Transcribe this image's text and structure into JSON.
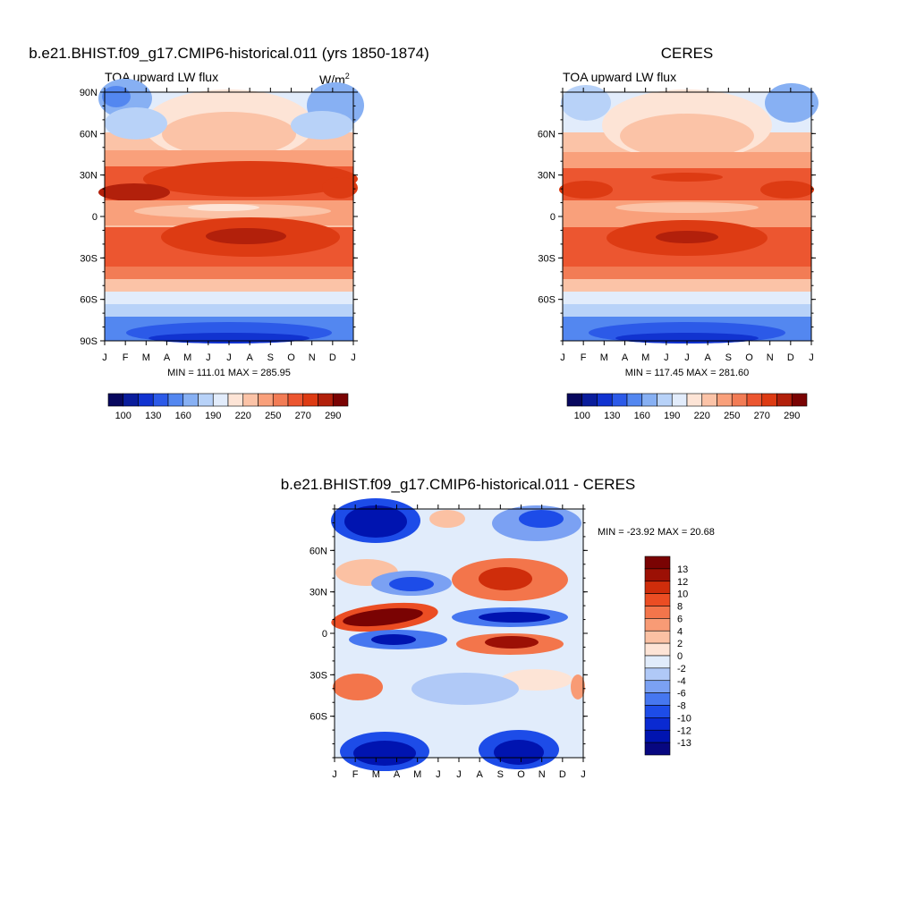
{
  "chart_data": [
    {
      "type": "heatmap",
      "title": "b.e21.BHIST.f09_g17.CMIP6-historical.011 (yrs 1850-1874)",
      "subtitle": "TOA upward LW flux",
      "units_label": "W/m",
      "units_exp": "2",
      "x_ticks": [
        "J",
        "F",
        "M",
        "A",
        "M",
        "J",
        "J",
        "A",
        "S",
        "O",
        "N",
        "D",
        "J"
      ],
      "y_ticks": [
        "90N",
        "60N",
        "30N",
        "0",
        "30S",
        "60S",
        "90S"
      ],
      "y_values": [
        90,
        60,
        30,
        0,
        -30,
        -60,
        -90
      ],
      "ylim": [
        -90,
        90
      ],
      "stats": "MIN = 111.01 MAX = 285.95",
      "colorbar_labels": [
        "100",
        "130",
        "160",
        "190",
        "220",
        "250",
        "270",
        "290"
      ]
    },
    {
      "type": "heatmap",
      "title": "CERES",
      "subtitle": "TOA upward LW flux",
      "x_ticks": [
        "J",
        "F",
        "M",
        "A",
        "M",
        "J",
        "J",
        "A",
        "S",
        "O",
        "N",
        "D",
        "J"
      ],
      "y_ticks": [
        "60N",
        "30N",
        "0",
        "30S",
        "60S"
      ],
      "y_values": [
        60,
        30,
        0,
        -30,
        -60
      ],
      "ylim": [
        -90,
        90
      ],
      "stats": "MIN = 117.45 MAX = 281.60",
      "colorbar_labels": [
        "100",
        "130",
        "160",
        "190",
        "220",
        "250",
        "270",
        "290"
      ]
    },
    {
      "type": "heatmap",
      "title": "b.e21.BHIST.f09_g17.CMIP6-historical.011 - CERES",
      "x_ticks": [
        "J",
        "F",
        "M",
        "A",
        "M",
        "J",
        "J",
        "A",
        "S",
        "O",
        "N",
        "D",
        "J"
      ],
      "y_ticks": [
        "60N",
        "30N",
        "0",
        "30S",
        "60S"
      ],
      "y_values": [
        60,
        30,
        0,
        -30,
        -60
      ],
      "ylim": [
        -90,
        90
      ],
      "stats": "MIN = -23.92 MAX =  20.68",
      "colorbar_labels": [
        "13",
        "12",
        "10",
        "8",
        "6",
        "4",
        "2",
        "0",
        "-2",
        "-4",
        "-6",
        "-8",
        "-10",
        "-12",
        "-13"
      ]
    }
  ],
  "colors": {
    "flux_scale": [
      "#08085e",
      "#0a1d9c",
      "#1133d0",
      "#2c5ae8",
      "#5387f0",
      "#87b0f3",
      "#b8d2f8",
      "#e2ecfb",
      "#fde4d6",
      "#fbc3a7",
      "#f9a07b",
      "#f27c55",
      "#ec5630",
      "#dd3b13",
      "#b2200b",
      "#7a0303"
    ],
    "diff_scale": [
      "#070780",
      "#0014b0",
      "#0a2ad2",
      "#1d4ce8",
      "#4677f0",
      "#7ba1f3",
      "#b0c9f7",
      "#e1ecfb",
      "#fde4d6",
      "#fbc1a3",
      "#f89b75",
      "#f3754b",
      "#eb4d23",
      "#cf2d0b",
      "#9c1005",
      "#7a0303"
    ]
  }
}
